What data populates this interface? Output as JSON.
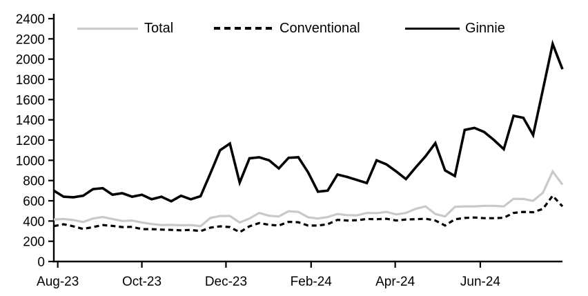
{
  "figure": {
    "background": "#ffffff"
  },
  "chart_data": {
    "type": "line",
    "title": "",
    "xlabel": "",
    "ylabel": "",
    "grid": false,
    "legend_position": "top",
    "ylim": [
      0,
      2400
    ],
    "y_ticks": [
      0,
      200,
      400,
      600,
      800,
      1000,
      1200,
      1400,
      1600,
      1800,
      2000,
      2200,
      2400
    ],
    "x_tick_labels": [
      "Aug-23",
      "Oct-23",
      "Dec-23",
      "Feb-24",
      "Apr-24",
      "Jun-24"
    ],
    "x_tick_week_positions": [
      0.4,
      9.0,
      17.6,
      26.3,
      34.9,
      43.6
    ],
    "x_frequency": "weekly",
    "x_weekly_dates": [
      "2023-08-04",
      "2023-08-11",
      "2023-08-18",
      "2023-08-25",
      "2023-09-01",
      "2023-09-08",
      "2023-09-15",
      "2023-09-22",
      "2023-09-29",
      "2023-10-06",
      "2023-10-13",
      "2023-10-20",
      "2023-10-27",
      "2023-11-03",
      "2023-11-10",
      "2023-11-17",
      "2023-11-24",
      "2023-12-01",
      "2023-12-08",
      "2023-12-15",
      "2023-12-22",
      "2023-12-29",
      "2024-01-05",
      "2024-01-12",
      "2024-01-19",
      "2024-01-26",
      "2024-02-02",
      "2024-02-09",
      "2024-02-16",
      "2024-02-23",
      "2024-03-01",
      "2024-03-08",
      "2024-03-15",
      "2024-03-22",
      "2024-03-29",
      "2024-04-05",
      "2024-04-12",
      "2024-04-19",
      "2024-04-26",
      "2024-05-03",
      "2024-05-10",
      "2024-05-17",
      "2024-05-24",
      "2024-05-31",
      "2024-06-07",
      "2024-06-14",
      "2024-06-21",
      "2024-06-28",
      "2024-07-05",
      "2024-07-12",
      "2024-07-19",
      "2024-07-26",
      "2024-08-02"
    ],
    "series": [
      {
        "name": "Total",
        "color": "#c9c9c9",
        "line_style": "solid",
        "line_width": 3.2,
        "values": [
          415,
          420,
          410,
          390,
          425,
          440,
          420,
          400,
          405,
          385,
          370,
          360,
          362,
          358,
          360,
          350,
          430,
          450,
          450,
          385,
          425,
          480,
          452,
          445,
          497,
          490,
          437,
          425,
          440,
          470,
          458,
          456,
          480,
          478,
          490,
          465,
          480,
          520,
          545,
          470,
          445,
          540,
          545,
          545,
          550,
          550,
          545,
          620,
          618,
          600,
          680,
          890,
          760
        ]
      },
      {
        "name": "Conventional",
        "color": "#000000",
        "line_style": "dashed",
        "line_width": 3.2,
        "values": [
          350,
          368,
          348,
          322,
          340,
          360,
          352,
          340,
          342,
          320,
          320,
          315,
          312,
          308,
          312,
          300,
          335,
          348,
          340,
          290,
          348,
          380,
          363,
          355,
          392,
          388,
          355,
          355,
          368,
          412,
          405,
          408,
          420,
          418,
          422,
          405,
          415,
          418,
          423,
          405,
          355,
          417,
          430,
          435,
          428,
          428,
          432,
          480,
          490,
          487,
          520,
          650,
          545
        ]
      },
      {
        "name": "Ginnie",
        "color": "#000000",
        "line_style": "solid",
        "line_width": 3.6,
        "values": [
          700,
          640,
          635,
          650,
          715,
          725,
          660,
          675,
          640,
          660,
          615,
          640,
          595,
          650,
          615,
          645,
          870,
          1100,
          1165,
          780,
          1020,
          1030,
          1000,
          920,
          1025,
          1030,
          880,
          690,
          700,
          860,
          835,
          805,
          775,
          1000,
          960,
          890,
          815,
          930,
          1040,
          1170,
          900,
          845,
          1300,
          1320,
          1280,
          1200,
          1110,
          1440,
          1420,
          1250,
          1700,
          2150,
          1900
        ]
      }
    ]
  }
}
